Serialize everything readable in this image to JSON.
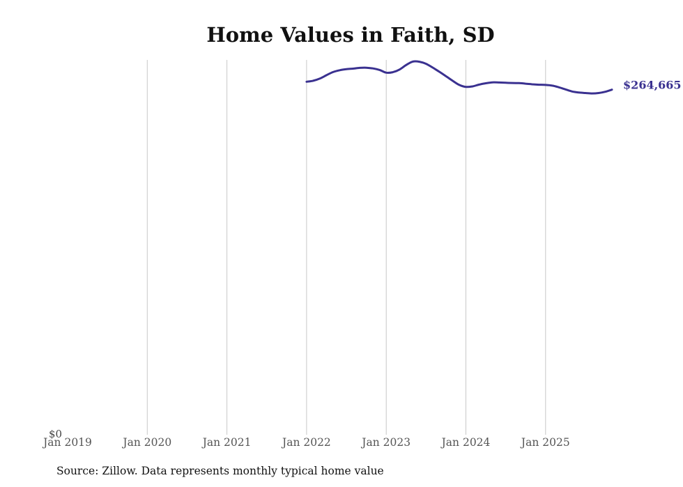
{
  "chart_data": {
    "type": "line",
    "title": "Home Values in Faith, SD",
    "xlabel": "",
    "ylabel": "",
    "x_ticks": [
      "Jan 2019",
      "Jan 2020",
      "Jan 2021",
      "Jan 2022",
      "Jan 2023",
      "Jan 2024",
      "Jan 2025"
    ],
    "y_tick_label": "$0",
    "end_label": "$264,665",
    "color": "#3a3190",
    "grid": "vertical",
    "series": [
      {
        "name": "Typical home value",
        "points": [
          [
            "2022-01",
            270800
          ],
          [
            "2022-02",
            271500
          ],
          [
            "2022-03",
            273200
          ],
          [
            "2022-04",
            275800
          ],
          [
            "2022-05",
            278200
          ],
          [
            "2022-06",
            279600
          ],
          [
            "2022-07",
            280400
          ],
          [
            "2022-08",
            280800
          ],
          [
            "2022-09",
            281400
          ],
          [
            "2022-10",
            281500
          ],
          [
            "2022-11",
            281000
          ],
          [
            "2022-12",
            279800
          ],
          [
            "2023-01",
            277700
          ],
          [
            "2023-02",
            278100
          ],
          [
            "2023-03",
            280100
          ],
          [
            "2023-04",
            283600
          ],
          [
            "2023-05",
            286200
          ],
          [
            "2023-06",
            286100
          ],
          [
            "2023-07",
            284500
          ],
          [
            "2023-08",
            281600
          ],
          [
            "2023-09",
            278400
          ],
          [
            "2023-10",
            275000
          ],
          [
            "2023-11",
            271500
          ],
          [
            "2023-12",
            268300
          ],
          [
            "2024-01",
            266800
          ],
          [
            "2024-02",
            267200
          ],
          [
            "2024-03",
            268600
          ],
          [
            "2024-04",
            269600
          ],
          [
            "2024-05",
            270300
          ],
          [
            "2024-06",
            270200
          ],
          [
            "2024-07",
            270000
          ],
          [
            "2024-08",
            269800
          ],
          [
            "2024-09",
            269700
          ],
          [
            "2024-10",
            269300
          ],
          [
            "2024-11",
            268800
          ],
          [
            "2024-12",
            268500
          ],
          [
            "2025-01",
            268300
          ],
          [
            "2025-02",
            267800
          ],
          [
            "2025-03",
            266500
          ],
          [
            "2025-04",
            264900
          ],
          [
            "2025-05",
            263300
          ],
          [
            "2025-06",
            262500
          ],
          [
            "2025-07",
            262100
          ],
          [
            "2025-08",
            261800
          ],
          [
            "2025-09",
            262100
          ],
          [
            "2025-10",
            263100
          ],
          [
            "2025-11",
            264665
          ]
        ]
      }
    ],
    "source": "Source: Zillow. Data represents monthly typical home value"
  }
}
